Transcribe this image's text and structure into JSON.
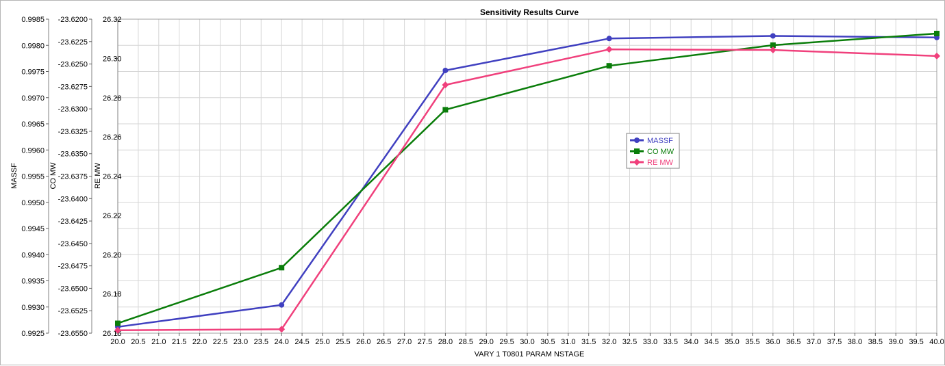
{
  "chart_data": {
    "type": "line",
    "title": "Sensitivity Results Curve",
    "xlabel": "VARY  1 T0801 PARAM NSTAGE",
    "xlim": [
      20.0,
      40.0
    ],
    "xticks": [
      "20.0",
      "20.5",
      "21.0",
      "21.5",
      "22.0",
      "22.5",
      "23.0",
      "23.5",
      "24.0",
      "24.5",
      "25.0",
      "25.5",
      "26.0",
      "26.5",
      "27.0",
      "27.5",
      "28.0",
      "28.5",
      "29.0",
      "29.5",
      "30.0",
      "30.5",
      "31.0",
      "31.5",
      "32.0",
      "32.5",
      "33.0",
      "33.5",
      "34.0",
      "34.5",
      "35.0",
      "35.5",
      "36.0",
      "36.5",
      "37.0",
      "37.5",
      "38.0",
      "38.5",
      "39.0",
      "39.5",
      "40.0"
    ],
    "x": [
      20,
      24,
      28,
      32,
      36,
      40
    ],
    "grid": true,
    "legend_position": "center-right",
    "y_axes": [
      {
        "id": "massf",
        "label": "MASSF",
        "lim": [
          0.9925,
          0.9985
        ],
        "ticks": [
          "0.9985",
          "0.9980",
          "0.9975",
          "0.9970",
          "0.9965",
          "0.9960",
          "0.9955",
          "0.9950",
          "0.9945",
          "0.9940",
          "0.9935",
          "0.9930",
          "0.9925"
        ]
      },
      {
        "id": "comw",
        "label": "CO MW",
        "lim": [
          -23.655,
          -23.62
        ],
        "ticks": [
          "-23.6200",
          "-23.6225",
          "-23.6250",
          "-23.6275",
          "-23.6300",
          "-23.6325",
          "-23.6350",
          "-23.6375",
          "-23.6400",
          "-23.6425",
          "-23.6450",
          "-23.6475",
          "-23.6500",
          "-23.6525",
          "-23.6550"
        ]
      },
      {
        "id": "remw",
        "label": "RE MW",
        "lim": [
          26.16,
          26.32
        ],
        "ticks": [
          "26.32",
          "26.30",
          "26.28",
          "26.26",
          "26.24",
          "26.22",
          "26.20",
          "26.18",
          "26.16"
        ]
      }
    ],
    "series": [
      {
        "name": "MASSF",
        "axis": "massf",
        "color": "#4040c0",
        "marker": "circle",
        "values": [
          0.99262,
          0.99304,
          0.99752,
          0.99813,
          0.99818,
          0.99815
        ]
      },
      {
        "name": "CO MW",
        "axis": "comw",
        "color": "#0a7d0a",
        "marker": "square",
        "values": [
          -23.6539,
          -23.6477,
          -23.6301,
          -23.6252,
          -23.6229,
          -23.6216
        ]
      },
      {
        "name": "RE MW",
        "axis": "remw",
        "color": "#f0407c",
        "marker": "diamond",
        "values": [
          26.1615,
          26.162,
          26.2865,
          26.3046,
          26.3043,
          26.3012
        ]
      }
    ]
  }
}
